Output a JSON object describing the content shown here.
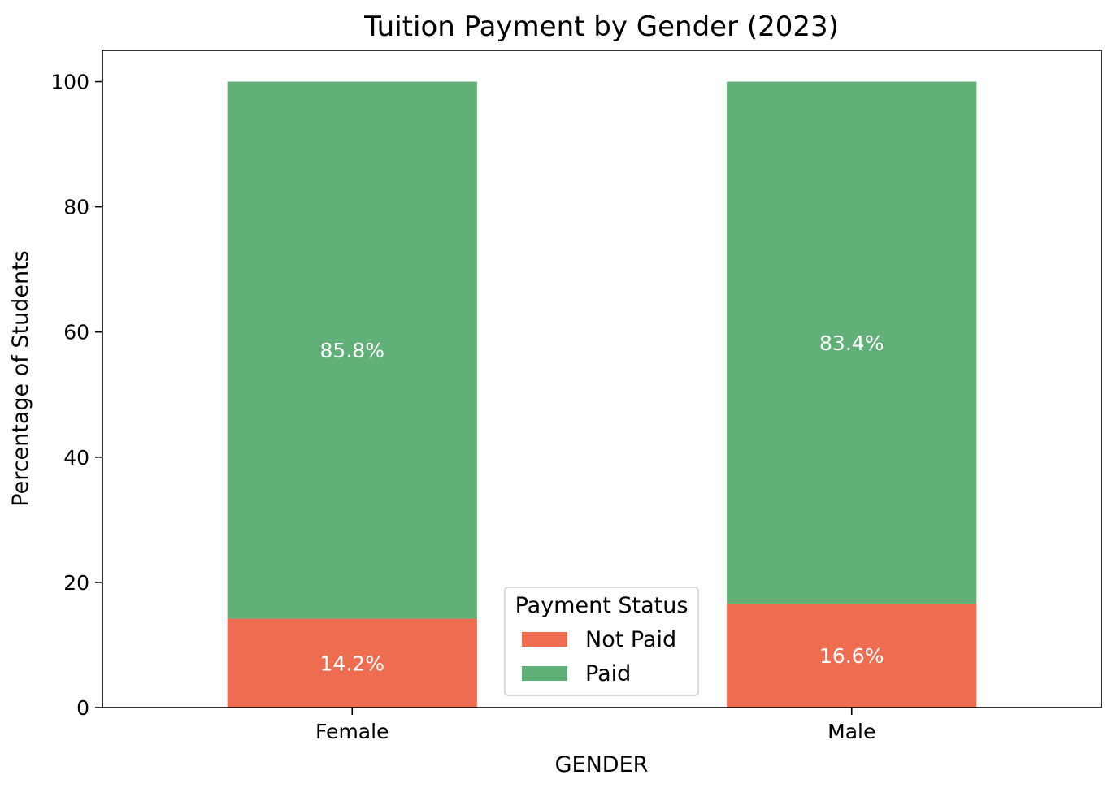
{
  "chart_data": {
    "type": "bar",
    "stacked": true,
    "title": "Tuition Payment by Gender (2023)",
    "xlabel": "GENDER",
    "ylabel": "Percentage of Students",
    "categories": [
      "Female",
      "Male"
    ],
    "ylim": [
      0,
      105
    ],
    "yticks": [
      0,
      20,
      40,
      60,
      80,
      100
    ],
    "series": [
      {
        "name": "Not Paid",
        "values": [
          14.2,
          16.6
        ],
        "labels": [
          "14.2%",
          "16.6%"
        ],
        "color": "#ee6c4f"
      },
      {
        "name": "Paid",
        "values": [
          85.8,
          83.4
        ],
        "labels": [
          "85.8%",
          "83.4%"
        ],
        "color": "#61b077"
      }
    ],
    "legend": {
      "title": "Payment Status",
      "placement": "bottom-center"
    },
    "grid": false
  }
}
